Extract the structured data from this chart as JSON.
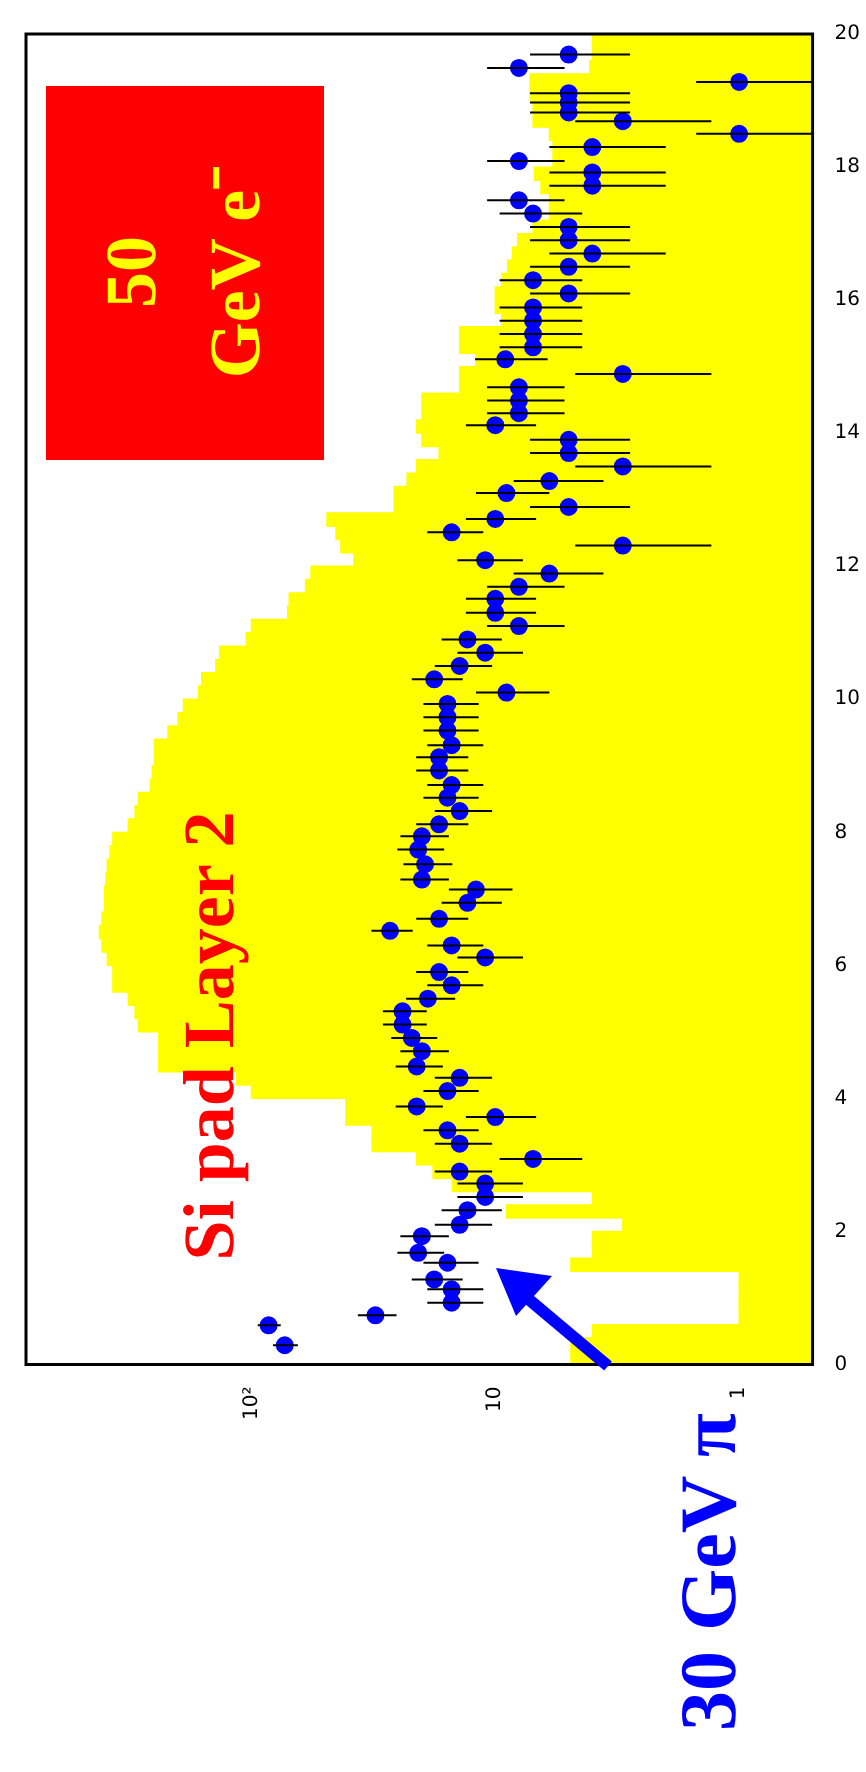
{
  "chart_data": {
    "type": "histogram",
    "title": "Si pad Layer 2",
    "orientation": "horizontal",
    "log": "x",
    "xlim": [
      840,
      0.5
    ],
    "xticks": [
      1,
      10,
      {
        "value": 100,
        "label": "10²"
      }
    ],
    "ylim": [
      0,
      20
    ],
    "yticks": [
      0,
      2,
      4,
      6,
      8,
      10,
      12,
      14,
      16,
      18,
      20
    ],
    "bins": [
      0,
      0.2,
      0.4,
      0.6,
      0.8,
      1,
      1.2,
      1.4,
      1.6,
      1.8,
      2,
      2.2,
      2.4,
      2.6,
      2.8,
      3,
      3.2,
      3.4,
      3.6,
      3.8,
      4,
      4.2,
      4.4,
      4.6,
      4.8,
      5,
      5.2,
      5.4,
      5.6,
      5.8,
      6,
      6.2,
      6.4,
      6.6,
      6.8,
      7,
      7.2,
      7.4,
      7.6,
      7.8,
      8,
      8.2,
      8.4,
      8.6,
      8.8,
      9,
      9.2,
      9.4,
      9.6,
      9.8,
      10,
      10.2,
      10.4,
      10.6,
      10.8,
      11,
      11.2,
      11.4,
      11.6,
      11.8,
      12,
      12.2,
      12.4,
      12.6,
      12.8,
      13,
      13.2,
      13.4,
      13.6,
      13.8,
      14,
      14.2,
      14.4,
      14.6,
      14.8,
      15,
      15.2,
      15.4,
      15.6,
      15.8,
      16,
      16.2,
      16.4,
      16.6,
      16.8,
      17,
      17.2,
      17.4,
      17.6,
      17.8,
      18,
      18.2,
      18.4,
      18.6,
      18.8,
      19,
      19.2,
      19.4,
      19.6,
      19.8,
      20
    ],
    "series": [
      {
        "name": "50 GeV e⁻",
        "color": "#ffff00",
        "values": [
          4.9,
          4.9,
          4,
          1,
          1,
          1,
          1,
          4.9,
          4,
          4,
          3,
          9,
          4,
          15,
          18,
          21,
          32,
          32,
          41,
          41,
          100,
          115,
          240,
          240,
          240,
          290,
          300,
          320,
          370,
          370,
          390,
          410,
          420,
          410,
          400,
          400,
          395,
          390,
          380,
          370,
          320,
          300,
          290,
          260,
          255,
          250,
          250,
          220,
          200,
          190,
          165,
          160,
          140,
          135,
          105,
          100,
          71,
          70,
          60,
          57,
          38,
          43,
          45,
          49,
          26,
          26,
          23,
          21,
          17,
          20,
          21,
          20,
          20,
          14,
          14,
          12,
          14,
          14,
          9.4,
          10,
          10,
          9.4,
          8.9,
          8.5,
          8.1,
          7,
          6,
          6,
          6.5,
          6.9,
          5.8,
          5.8,
          6,
          7,
          7,
          7.2,
          7.2,
          4.1,
          4,
          4
        ]
      },
      {
        "type": "scatter",
        "name": "30 GeV π",
        "color": "#0000ff",
        "marker": "circle",
        "x": [
          0.29,
          0.59,
          0.74,
          0.93,
          1.13,
          1.28,
          1.53,
          1.68,
          1.93,
          2.1,
          2.32,
          2.52,
          2.72,
          2.9,
          3.09,
          3.32,
          3.52,
          3.72,
          3.88,
          4.11,
          4.31,
          4.48,
          4.71,
          4.91,
          5.11,
          5.31,
          5.5,
          5.7,
          5.9,
          6.12,
          6.3,
          6.52,
          6.7,
          6.94,
          7.14,
          7.29,
          7.52,
          7.74,
          7.94,
          8.12,
          8.32,
          8.52,
          8.71,
          8.93,
          9.13,
          9.31,
          9.53,
          9.73,
          9.93,
          10.1,
          10.3,
          10.5,
          10.7,
          10.9,
          11.1,
          11.3,
          11.51,
          11.69,
          11.89,
          12.09,
          12.31,
          12.51,
          12.71,
          12.89,
          13.1,
          13.28,
          13.5,
          13.7,
          13.9,
          14.12,
          14.3,
          14.49,
          14.69,
          14.89,
          15.11,
          15.29,
          15.49,
          15.69,
          15.89,
          16.1,
          16.3,
          16.5,
          16.7,
          16.9,
          17.1,
          17.3,
          17.5,
          17.72,
          17.92,
          18.09,
          18.3,
          18.5,
          18.69,
          18.82,
          18.97,
          19.11,
          19.28,
          19.49,
          19.69
        ],
        "values": [
          73,
          85,
          31,
          15.1,
          15.1,
          17.8,
          15.7,
          20.7,
          20,
          14,
          13,
          11,
          11,
          14,
          7,
          14,
          15.7,
          10,
          21,
          15.7,
          14,
          21,
          20,
          22,
          24,
          24,
          18.9,
          15.1,
          17,
          11,
          15.1,
          27,
          17,
          13,
          12,
          20,
          19.4,
          20.7,
          20,
          17,
          14,
          15.7,
          15.1,
          17,
          17,
          15.1,
          15.7,
          15.7,
          15.7,
          9,
          17.8,
          14,
          11,
          13,
          8,
          10,
          10,
          8,
          6,
          11,
          3,
          15.1,
          10,
          5,
          9,
          6,
          3,
          5,
          5,
          10,
          8,
          8,
          8,
          3,
          9.1,
          7,
          7,
          7,
          7,
          5,
          7,
          5,
          4,
          5,
          5,
          7,
          8,
          4,
          4,
          8,
          4,
          1,
          3,
          5,
          5,
          5,
          1,
          8,
          5
        ],
        "errors": [
          8.5,
          9.2,
          5.6,
          3.9,
          3.9,
          4.2,
          4,
          4.5,
          4.5,
          3.7,
          3.6,
          3.3,
          3.3,
          3.7,
          2.6,
          3.7,
          4,
          3.2,
          4.6,
          4,
          3.7,
          4.6,
          4.5,
          4.7,
          4.9,
          4.9,
          4.3,
          3.9,
          4.1,
          3.3,
          3.9,
          5.2,
          4.1,
          3.6,
          3.5,
          4.5,
          4.4,
          4.5,
          4.5,
          4.1,
          3.7,
          4,
          3.9,
          4.1,
          4.1,
          3.9,
          4,
          4,
          4,
          3,
          4.2,
          3.7,
          3.3,
          3.6,
          2.8,
          3.2,
          3.2,
          2.8,
          2.4,
          3.3,
          1.7,
          3.9,
          3.2,
          2.2,
          3,
          2.4,
          1.7,
          2.2,
          2.2,
          3.2,
          2.8,
          2.8,
          2.8,
          1.7,
          3,
          2.6,
          2.6,
          2.6,
          2.6,
          2.2,
          2.6,
          2.2,
          2,
          2.2,
          2.2,
          2.6,
          2.8,
          2,
          2,
          2.8,
          2,
          0.5,
          1.7,
          2.2,
          2.2,
          2.2,
          0.5,
          2.8,
          2.2
        ]
      }
    ]
  }
}
